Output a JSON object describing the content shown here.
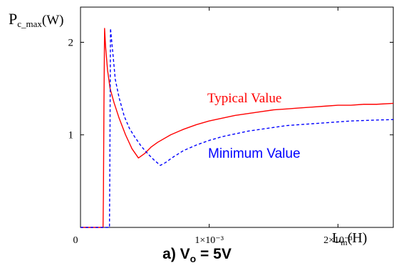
{
  "chart_data": {
    "type": "line",
    "ylabel": {
      "main": "P",
      "sub": "c_max",
      "unit": "(W)"
    },
    "xlabel": {
      "main": "L",
      "sub": "m",
      "unit": "(H)"
    },
    "xlim": [
      0,
      0.00243
    ],
    "ylim": [
      0,
      2.38
    ],
    "x_ticks": [
      {
        "value": 0,
        "label": "0"
      },
      {
        "value": 0.001,
        "label": "1×10⁻³"
      },
      {
        "value": 0.002,
        "label": "2×10⁻³"
      }
    ],
    "y_ticks": [
      {
        "value": 1,
        "label": "1"
      },
      {
        "value": 2,
        "label": "2"
      }
    ],
    "grid": false,
    "series": [
      {
        "name": "Typical Value",
        "color": "#ff0000",
        "dash": "solid",
        "points": [
          [
            0.0,
            0.0
          ],
          [
            0.000175,
            0.0
          ],
          [
            0.000175,
            0.0
          ],
          [
            0.000178,
            0.35
          ],
          [
            0.000182,
            1.3
          ],
          [
            0.000187,
            2.15
          ],
          [
            0.000195,
            1.95
          ],
          [
            0.00021,
            1.7
          ],
          [
            0.00023,
            1.5
          ],
          [
            0.00026,
            1.35
          ],
          [
            0.0003,
            1.18
          ],
          [
            0.00035,
            1.0
          ],
          [
            0.0004,
            0.85
          ],
          [
            0.00045,
            0.75
          ],
          [
            0.0005,
            0.8
          ],
          [
            0.00055,
            0.87
          ],
          [
            0.0006,
            0.92
          ],
          [
            0.0007,
            1.0
          ],
          [
            0.0008,
            1.06
          ],
          [
            0.0009,
            1.11
          ],
          [
            0.001,
            1.15
          ],
          [
            0.0011,
            1.18
          ],
          [
            0.0012,
            1.21
          ],
          [
            0.0013,
            1.23
          ],
          [
            0.0014,
            1.25
          ],
          [
            0.0015,
            1.27
          ],
          [
            0.0016,
            1.28
          ],
          [
            0.0017,
            1.29
          ],
          [
            0.0018,
            1.3
          ],
          [
            0.0019,
            1.31
          ],
          [
            0.002,
            1.32
          ],
          [
            0.0021,
            1.32
          ],
          [
            0.0022,
            1.33
          ],
          [
            0.0023,
            1.33
          ],
          [
            0.00243,
            1.34
          ]
        ]
      },
      {
        "name": "Minimum Value",
        "color": "#0000ff",
        "dash": "dashed",
        "points": [
          [
            0.0,
            0.0
          ],
          [
            0.000225,
            0.0
          ],
          [
            0.000228,
            0.7
          ],
          [
            0.000233,
            2.15
          ],
          [
            0.00025,
            1.9
          ],
          [
            0.00027,
            1.6
          ],
          [
            0.0003,
            1.4
          ],
          [
            0.00034,
            1.2
          ],
          [
            0.00038,
            1.07
          ],
          [
            0.00042,
            0.98
          ],
          [
            0.00047,
            0.88
          ],
          [
            0.00052,
            0.8
          ],
          [
            0.00057,
            0.73
          ],
          [
            0.00062,
            0.67
          ],
          [
            0.00066,
            0.7
          ],
          [
            0.00072,
            0.76
          ],
          [
            0.0008,
            0.83
          ],
          [
            0.0009,
            0.89
          ],
          [
            0.001,
            0.94
          ],
          [
            0.0011,
            0.98
          ],
          [
            0.0012,
            1.01
          ],
          [
            0.0013,
            1.04
          ],
          [
            0.0014,
            1.06
          ],
          [
            0.0015,
            1.08
          ],
          [
            0.0016,
            1.1
          ],
          [
            0.0017,
            1.11
          ],
          [
            0.0018,
            1.12
          ],
          [
            0.0019,
            1.13
          ],
          [
            0.002,
            1.14
          ],
          [
            0.0021,
            1.15
          ],
          [
            0.0022,
            1.155
          ],
          [
            0.0023,
            1.16
          ],
          [
            0.00243,
            1.165
          ]
        ]
      }
    ],
    "annotations": [
      {
        "text": "Typical Value",
        "color": "#ff0000"
      },
      {
        "text": "Minimum Value",
        "color": "#0000ff"
      }
    ]
  },
  "caption": {
    "prefix": "a) V",
    "sub": "o",
    "suffix": " = 5V"
  }
}
